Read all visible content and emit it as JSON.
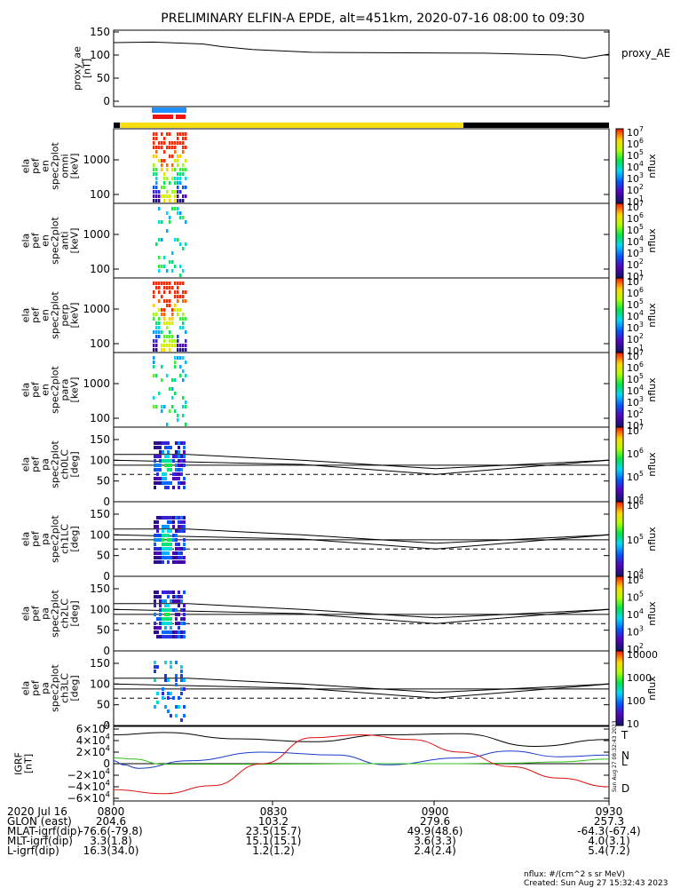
{
  "title": "PRELIMINARY ELFIN-A EPDE, alt=451km, 2020-07-16 08:00 to 09:30",
  "colors": {
    "blue_bar": "#1e90ff",
    "red_bar": "#ee1111",
    "yellow_bar": "#f5dd10",
    "black_bar": "#000000",
    "line_T": "#000000",
    "line_N": "#1a3cc8",
    "line_L": "#35c01d",
    "line_D": "#dd1111"
  },
  "chart_data": [
    {
      "type": "line",
      "ylabel": "proxy_ae\n[nT]",
      "yticks": [
        "150",
        "100",
        "50",
        "0"
      ],
      "ylim": [
        0,
        150
      ],
      "series": [
        {
          "name": "proxy_AE",
          "x": [
            0,
            0.08,
            0.18,
            0.22,
            0.28,
            0.4,
            0.55,
            0.75,
            0.9,
            0.95,
            1.0
          ],
          "y": [
            127,
            128,
            124,
            118,
            112,
            106,
            105,
            104,
            100,
            93,
            102
          ]
        }
      ]
    },
    {
      "type": "heatmap",
      "ylabel": "ela\npef\nen\nspec2plot\nomni\n[keV]",
      "yticks": [
        "1000",
        "100"
      ],
      "cbticks": [
        "10^7",
        "10^6",
        "10^5",
        "10^4",
        "10^3",
        "10^2",
        "10^1"
      ],
      "cblabel": "nflux"
    },
    {
      "type": "heatmap",
      "ylabel": "ela\npef\nen\nspec2plot\nanti\n[keV]",
      "yticks": [
        "1000",
        "100"
      ],
      "cbticks": [
        "10^7",
        "10^6",
        "10^5",
        "10^4",
        "10^3",
        "10^2",
        "10^1"
      ],
      "cblabel": "nflux"
    },
    {
      "type": "heatmap",
      "ylabel": "ela\npef\nen\nspec2plot\nperp\n[keV]",
      "yticks": [
        "1000",
        "100"
      ],
      "cbticks": [
        "10^7",
        "10^6",
        "10^5",
        "10^4",
        "10^3",
        "10^2",
        "10^1"
      ],
      "cblabel": "nflux"
    },
    {
      "type": "heatmap",
      "ylabel": "ela\npef\nen\nspec2plot\npara\n[keV]",
      "yticks": [
        "1000",
        "100"
      ],
      "cbticks": [
        "10^7",
        "10^6",
        "10^5",
        "10^4",
        "10^3",
        "10^2",
        "10^1"
      ],
      "cblabel": "nflux"
    },
    {
      "type": "heatmap",
      "ylabel": "ela\npef\npa\nspec2plot\nch0LC\n[deg]",
      "yticks": [
        "150",
        "100",
        "50",
        "0"
      ],
      "cbticks": [
        "10^7",
        "10^6",
        "10^5",
        "10^4"
      ],
      "cblabel": "nflux"
    },
    {
      "type": "heatmap",
      "ylabel": "ela\npef\npa\nspec2plot\nch1LC\n[deg]",
      "yticks": [
        "150",
        "100",
        "50",
        "0"
      ],
      "cbticks": [
        "10^6",
        "10^5",
        "10^4"
      ],
      "cblabel": "nflux"
    },
    {
      "type": "heatmap",
      "ylabel": "ela\npef\npa\nspec2plot\nch2LC\n[deg]",
      "yticks": [
        "150",
        "100",
        "50",
        "0"
      ],
      "cbticks": [
        "10^6",
        "10^5",
        "10^4",
        "10^3",
        "10^2"
      ],
      "cblabel": "nflux"
    },
    {
      "type": "heatmap",
      "ylabel": "ela\npef\npa\nspec2plot\nch3LC\n[deg]",
      "yticks": [
        "150",
        "100",
        "50",
        "0"
      ],
      "cbticks": [
        "10000",
        "1000",
        "100",
        "10"
      ],
      "cblabel": "nflux"
    },
    {
      "type": "line",
      "ylabel": "IGRF\n[nT]",
      "yticks": [
        "6×10^4",
        "4×10^4",
        "2×10^4",
        "0",
        "−2×10^4",
        "−4×10^4",
        "−6×10^4"
      ],
      "ylim": [
        -60000,
        60000
      ],
      "series": [
        {
          "name": "T",
          "x": [
            0,
            0.1,
            0.25,
            0.4,
            0.55,
            0.7,
            0.85,
            1.0
          ],
          "y": [
            50000,
            54000,
            43000,
            38000,
            50000,
            52000,
            30000,
            42000
          ]
        },
        {
          "name": "N",
          "x": [
            0,
            0.02,
            0.05,
            0.15,
            0.3,
            0.45,
            0.55,
            0.7,
            0.8,
            0.9,
            1.0
          ],
          "y": [
            5000,
            -2000,
            -8000,
            5000,
            20000,
            15000,
            -2000,
            10000,
            22000,
            12000,
            15000
          ]
        },
        {
          "name": "L",
          "x": [
            0,
            0.04,
            0.1,
            0.3,
            0.5,
            0.7,
            0.8,
            0.9,
            1.0
          ],
          "y": [
            10000,
            8000,
            -1000,
            -1000,
            0,
            0,
            1000,
            3000,
            8000
          ]
        },
        {
          "name": "D",
          "x": [
            0,
            0.1,
            0.2,
            0.3,
            0.4,
            0.5,
            0.6,
            0.7,
            0.8,
            0.9,
            1.0
          ],
          "y": [
            -45000,
            -52000,
            -38000,
            0,
            45000,
            50000,
            42000,
            20000,
            -5000,
            -25000,
            -40000
          ]
        }
      ]
    }
  ],
  "side_labels": {
    "proxy_ae": "proxy_AE",
    "igrf_T": "T",
    "igrf_N": "N",
    "igrf_L": "L",
    "igrf_D": "D",
    "vertical_stamp": "Sun Aug 27 08:32:43 2023"
  },
  "footer": {
    "rows": [
      {
        "label": "2020 Jul 16",
        "values": [
          "0800",
          "0830",
          "0900",
          "0930"
        ]
      },
      {
        "label": "GLON (east)",
        "values": [
          "204.6",
          "103.2",
          "279.6",
          "257.3"
        ]
      },
      {
        "label": "MLAT-igrf(dip)",
        "values": [
          "-76.6(-79.8)",
          "23.5(15.7)",
          "49.9(48.6)",
          "-64.3(-67.4)"
        ]
      },
      {
        "label": "MLT-igrf(dip)",
        "values": [
          "3.3(1.8)",
          "15.1(15.1)",
          "3.6(3.3)",
          "4.0(3.1)"
        ]
      },
      {
        "label": "L-igrf(dip)",
        "values": [
          "16.3(34.0)",
          "1.2(1.2)",
          "2.4(2.4)",
          "5.4(7.2)"
        ]
      }
    ],
    "units": "nflux: #/(cm^2 s sr MeV)",
    "created": "Created: Sun Aug 27 15:32:43 2023"
  }
}
